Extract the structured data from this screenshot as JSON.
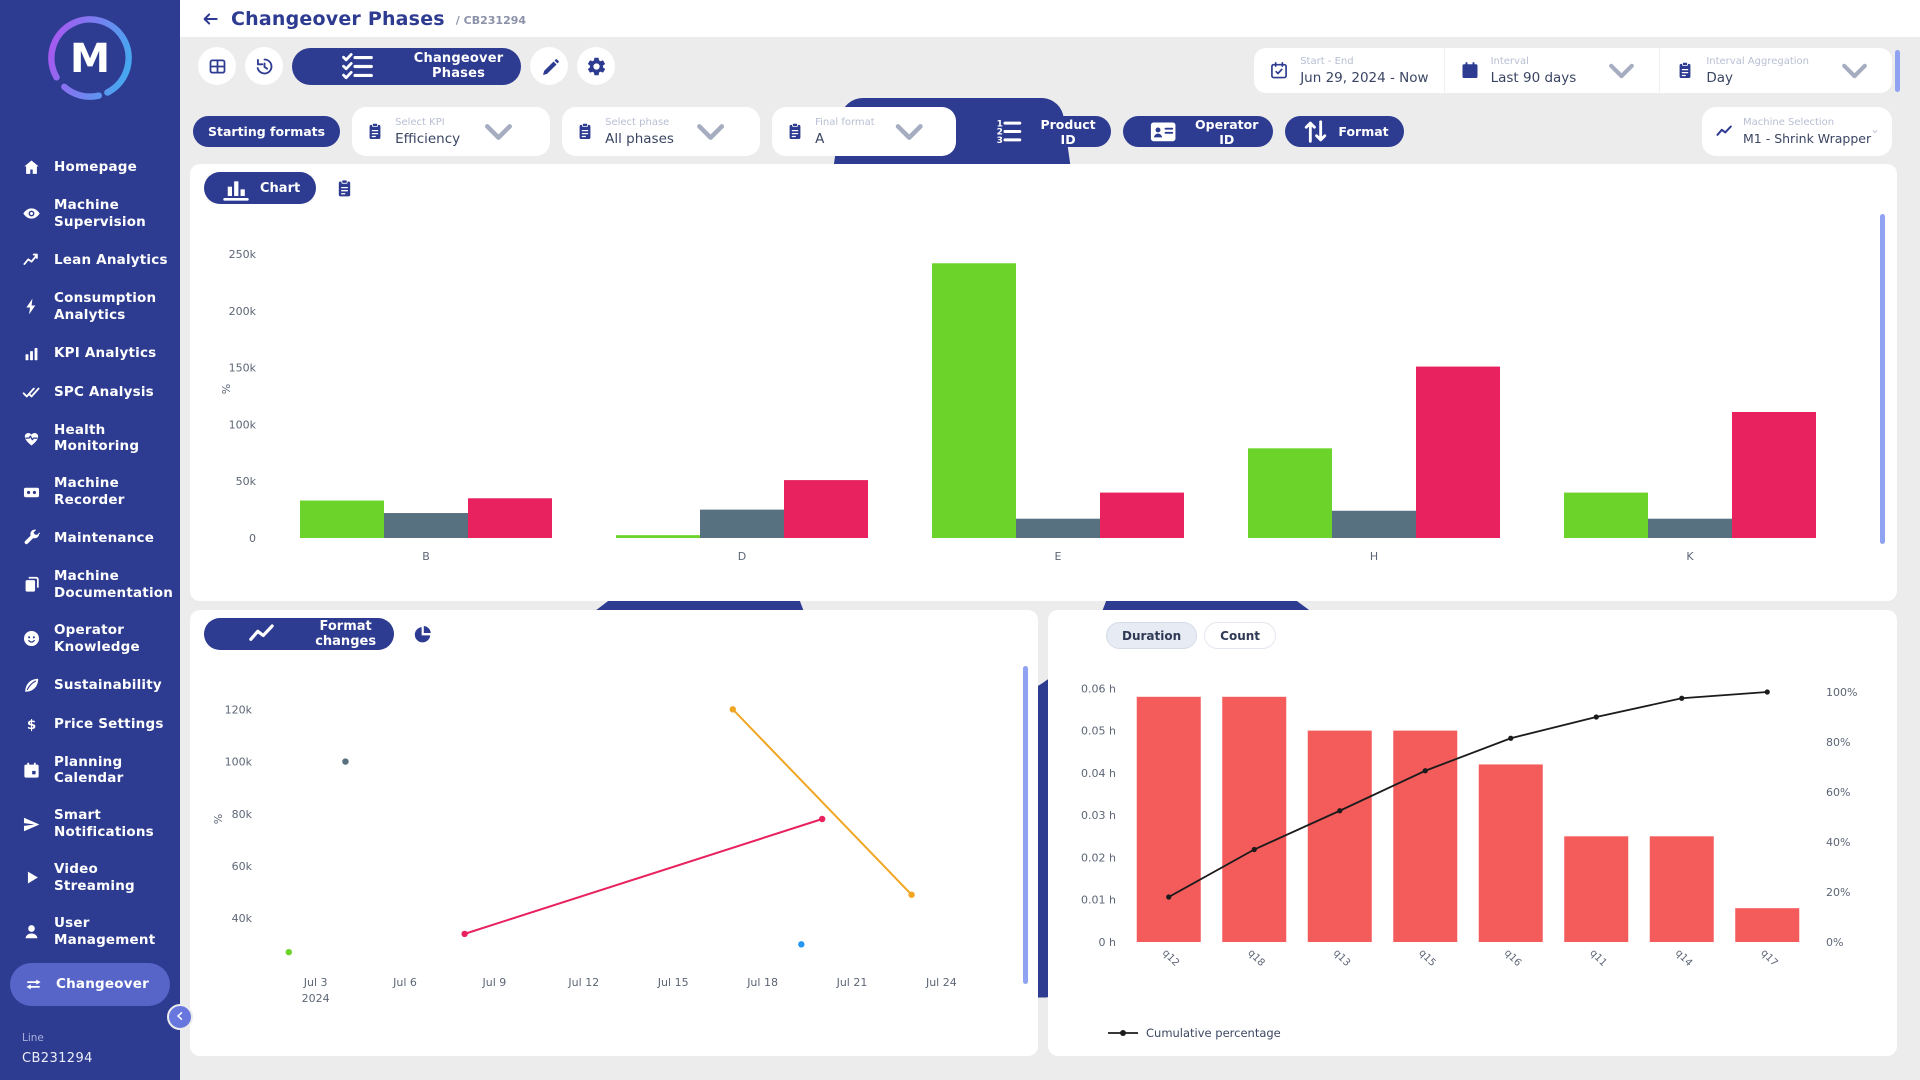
{
  "sidebar": {
    "logo_letter": "M",
    "items": [
      {
        "label": "Homepage",
        "icon": "home",
        "active": false
      },
      {
        "label": "Machine Supervision",
        "icon": "eye",
        "active": false
      },
      {
        "label": "Lean Analytics",
        "icon": "trend-line",
        "active": false
      },
      {
        "label": "Consumption Analytics",
        "icon": "bolt",
        "active": false
      },
      {
        "label": "KPI Analytics",
        "icon": "bar-chart",
        "active": false
      },
      {
        "label": "SPC Analysis",
        "icon": "double-check",
        "active": false
      },
      {
        "label": "Health Monitoring",
        "icon": "heart-pulse",
        "active": false
      },
      {
        "label": "Machine Recorder",
        "icon": "recorder",
        "active": false
      },
      {
        "label": "Maintenance",
        "icon": "wrench",
        "active": false
      },
      {
        "label": "Machine Documentation",
        "icon": "documents",
        "active": false
      },
      {
        "label": "Operator Knowledge",
        "icon": "operator-face",
        "active": false
      },
      {
        "label": "Sustainability",
        "icon": "leaf",
        "active": false
      },
      {
        "label": "Price Settings",
        "icon": "dollar",
        "active": false
      },
      {
        "label": "Planning Calendar",
        "icon": "calendar",
        "active": false
      },
      {
        "label": "Smart Notifications",
        "icon": "paper-plane",
        "active": false
      },
      {
        "label": "Video Streaming",
        "icon": "play",
        "active": false
      },
      {
        "label": "User Management",
        "icon": "user",
        "active": false
      },
      {
        "label": "Changeover",
        "icon": "changeover-arrows",
        "active": true
      }
    ],
    "footer": {
      "label": "Line",
      "value": "CB231294"
    }
  },
  "header": {
    "title": "Changeover Phases",
    "breadcrumb": "/ CB231294"
  },
  "toolbar": {
    "tab_label": "Changeover Phases",
    "date_field": {
      "label": "Start - End",
      "value": "Jun 29, 2024 - Now"
    },
    "interval_field": {
      "label": "Interval",
      "value": "Last 90 days"
    },
    "aggregation_field": {
      "label": "Interval Aggregation",
      "value": "Day"
    }
  },
  "filters": {
    "starting_formats_label": "Starting formats",
    "kpi": {
      "label": "Select KPI",
      "value": "Efficiency"
    },
    "phase": {
      "label": "Select phase",
      "value": "All phases"
    },
    "final_format": {
      "label": "Final format",
      "value": "A"
    },
    "product_id_label": "Product ID",
    "operator_id_label": "Operator ID",
    "format_label": "Format",
    "machine": {
      "label": "Machine Selection",
      "value": "M1 - Shrink Wrapper"
    }
  },
  "panels": {
    "main_tab_label": "Chart",
    "format_changes_tab_label": "Format changes",
    "duration_label": "Duration",
    "count_label": "Count",
    "selected_toggle": "Duration",
    "legend_label": "Cumulative percentage"
  },
  "colors": {
    "navy": "#2d3b90",
    "green": "#6cd32b",
    "slate": "#587180",
    "pink": "#e8215f",
    "orange": "#f0a623",
    "blue": "#2596f3",
    "pareto_red": "#f45b5b",
    "cumulative_line": "#1b1b1b",
    "scrollbar": "#8fa3f2",
    "tick": "#5d6676"
  },
  "chart_data": [
    {
      "type": "bar",
      "ylabel": "%",
      "categories": [
        "B",
        "D",
        "E",
        "H",
        "K"
      ],
      "series": [
        {
          "name": "green",
          "color": "#6cd32b",
          "values": [
            33000,
            2500,
            242000,
            79000,
            40000
          ]
        },
        {
          "name": "slate",
          "color": "#587180",
          "values": [
            22000,
            25000,
            17000,
            24000,
            17000
          ]
        },
        {
          "name": "pink",
          "color": "#e8215f",
          "values": [
            35000,
            51000,
            40000,
            151000,
            111000
          ]
        }
      ],
      "yticks": [
        {
          "v": 0,
          "label": "0"
        },
        {
          "v": 50000,
          "label": "50k"
        },
        {
          "v": 100000,
          "label": "100k"
        },
        {
          "v": 150000,
          "label": "150k"
        },
        {
          "v": 200000,
          "label": "200k"
        },
        {
          "v": 250000,
          "label": "250k"
        }
      ],
      "ylim": [
        0,
        262500
      ],
      "grid": false
    },
    {
      "type": "line",
      "ylabel": "%",
      "xlim_days": [
        1.2,
        25.8
      ],
      "ylim": [
        24000,
        132000
      ],
      "xticks": [
        {
          "d": 3,
          "label": "Jul 3",
          "sub": "2024"
        },
        {
          "d": 6,
          "label": "Jul 6"
        },
        {
          "d": 9,
          "label": "Jul 9"
        },
        {
          "d": 12,
          "label": "Jul 12"
        },
        {
          "d": 15,
          "label": "Jul 15"
        },
        {
          "d": 18,
          "label": "Jul 18"
        },
        {
          "d": 21,
          "label": "Jul 21"
        },
        {
          "d": 24,
          "label": "Jul 24"
        }
      ],
      "yticks": [
        {
          "v": 40000,
          "label": "40k"
        },
        {
          "v": 60000,
          "label": "60k"
        },
        {
          "v": 80000,
          "label": "80k"
        },
        {
          "v": 100000,
          "label": "100k"
        },
        {
          "v": 120000,
          "label": "120k"
        }
      ],
      "series": [
        {
          "name": "green",
          "color": "#6cd32b",
          "points": [
            [
              2.1,
              27000
            ]
          ]
        },
        {
          "name": "slate",
          "color": "#587180",
          "points": [
            [
              4,
              100000
            ]
          ]
        },
        {
          "name": "pink",
          "color": "#e8215f",
          "points": [
            [
              8,
              34000
            ],
            [
              20,
              78000
            ]
          ]
        },
        {
          "name": "orange",
          "color": "#f0a623",
          "points": [
            [
              17,
              120000
            ],
            [
              23,
              49000
            ]
          ]
        },
        {
          "name": "blue",
          "color": "#2596f3",
          "points": [
            [
              19.3,
              30000
            ]
          ]
        }
      ],
      "grid": false
    },
    {
      "type": "pareto",
      "categories": [
        "q12",
        "q18",
        "q13",
        "q15",
        "q16",
        "q11",
        "q14",
        "q17"
      ],
      "bars": [
        0.058,
        0.058,
        0.05,
        0.05,
        0.042,
        0.025,
        0.025,
        0.008
      ],
      "bar_unit": "h",
      "bar_color": "#f45b5b",
      "cumulative_pct": [
        18,
        37,
        52.5,
        68.5,
        81.5,
        90,
        97.5,
        100
      ],
      "line_color": "#1b1b1b",
      "left_ticks": [
        {
          "v": 0,
          "label": "0 h"
        },
        {
          "v": 0.01,
          "label": "0.01 h"
        },
        {
          "v": 0.02,
          "label": "0.02 h"
        },
        {
          "v": 0.03,
          "label": "0.03 h"
        },
        {
          "v": 0.04,
          "label": "0.04 h"
        },
        {
          "v": 0.05,
          "label": "0.05 h"
        },
        {
          "v": 0.06,
          "label": "0.06 h"
        }
      ],
      "right_ticks": [
        {
          "p": 0,
          "label": "0%"
        },
        {
          "p": 20,
          "label": "20%"
        },
        {
          "p": 40,
          "label": "40%"
        },
        {
          "p": 60,
          "label": "60%"
        },
        {
          "p": 80,
          "label": "80%"
        },
        {
          "p": 100,
          "label": "100%"
        }
      ],
      "left_ylim": [
        0,
        0.0615
      ],
      "right_ylim": [
        0,
        104
      ],
      "legend": "Cumulative percentage",
      "grid": false
    }
  ]
}
